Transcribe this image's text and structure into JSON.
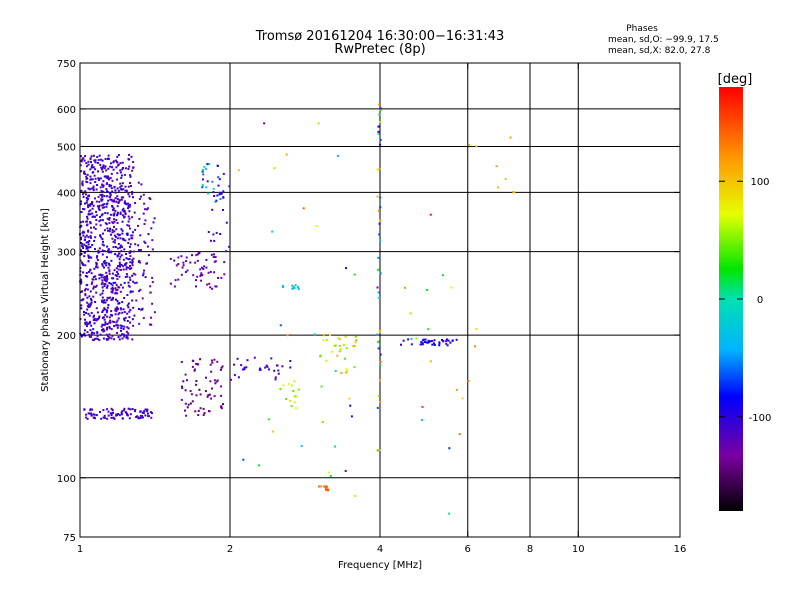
{
  "chart_data": {
    "type": "scatter",
    "title": "Tromsø 20161204 16:30:00−16:31:43",
    "subtitle": "RwPretec (8p)",
    "xlabel": "Frequency [MHz]",
    "ylabel": "Stationary phase Virtual Height [km]",
    "x_scale": "log",
    "y_scale": "log",
    "xlim": [
      1,
      16
    ],
    "ylim": [
      75,
      750
    ],
    "x_ticks": [
      1,
      2,
      4,
      6,
      8,
      10,
      16
    ],
    "x_tick_labels": [
      "1",
      "2",
      "4",
      "6",
      "8",
      "10",
      "16"
    ],
    "y_ticks": [
      75,
      100,
      200,
      300,
      400,
      500,
      600,
      750
    ],
    "y_tick_labels": [
      "75",
      "100",
      "200",
      "300",
      "400",
      "500",
      "600",
      "750"
    ],
    "x_grid": [
      2,
      4,
      6,
      8,
      10
    ],
    "y_grid": [
      100,
      200,
      300,
      400,
      500,
      600
    ],
    "grid": true,
    "phase_info": {
      "heading": "Phases",
      "line_o": "mean, sd,O: −99.9, 17.5",
      "line_x": "mean, sd,X:  82.0, 27.8"
    },
    "colorbar": {
      "label": "[deg]",
      "range": [
        -180,
        180
      ],
      "ticks": [
        100,
        0,
        -100
      ],
      "tick_labels": [
        "100",
        "0",
        "-100"
      ]
    },
    "clusters": [
      {
        "f": [
          1.0,
          1.28
        ],
        "h": [
          195,
          480
        ],
        "n": 900,
        "phase": [
          -125,
          -95
        ],
        "seed": 11
      },
      {
        "f": [
          1.28,
          1.42
        ],
        "h": [
          210,
          420
        ],
        "n": 70,
        "phase": [
          -140,
          -100
        ],
        "seed": 12
      },
      {
        "f": [
          1.02,
          1.4
        ],
        "h": [
          133,
          140
        ],
        "n": 90,
        "phase": [
          -120,
          -100
        ],
        "seed": 13
      },
      {
        "f": [
          1.6,
          1.95
        ],
        "h": [
          135,
          180
        ],
        "n": 70,
        "phase": [
          -150,
          -120
        ],
        "seed": 14
      },
      {
        "f": [
          1.5,
          1.95
        ],
        "h": [
          250,
          300
        ],
        "n": 60,
        "phase": [
          -135,
          -110
        ],
        "seed": 15
      },
      {
        "f": [
          1.75,
          1.95
        ],
        "h": [
          380,
          460
        ],
        "n": 25,
        "phase": [
          -120,
          10
        ],
        "seed": 16
      },
      {
        "f": [
          1.8,
          2.0
        ],
        "h": [
          300,
          420
        ],
        "n": 20,
        "phase": [
          -115,
          -95
        ],
        "seed": 17
      },
      {
        "f": [
          2.0,
          2.8
        ],
        "h": [
          160,
          180
        ],
        "n": 30,
        "phase": [
          -120,
          -95
        ],
        "seed": 18
      },
      {
        "f": [
          2.5,
          2.8
        ],
        "h": [
          140,
          160
        ],
        "n": 14,
        "phase": [
          40,
          80
        ],
        "seed": 19
      },
      {
        "f": [
          2.55,
          2.75
        ],
        "h": [
          250,
          255
        ],
        "n": 10,
        "phase": [
          -40,
          -20
        ],
        "seed": 20
      },
      {
        "f": [
          3.0,
          3.6
        ],
        "h": [
          165,
          200
        ],
        "n": 30,
        "phase": [
          40,
          120
        ],
        "seed": 21
      },
      {
        "f": [
          3.95,
          4.02
        ],
        "h": [
          110,
          650
        ],
        "n": 40,
        "phase": [
          -140,
          150
        ],
        "seed": 22
      },
      {
        "f": [
          4.4,
          5.7
        ],
        "h": [
          190,
          196
        ],
        "n": 40,
        "phase": [
          -110,
          -80
        ],
        "seed": 23
      },
      {
        "f": [
          3.0,
          3.15
        ],
        "h": [
          94,
          96
        ],
        "n": 14,
        "phase": [
          120,
          150
        ],
        "seed": 24
      },
      {
        "f": [
          4.05,
          6.3
        ],
        "h": [
          80,
          400
        ],
        "n": 20,
        "phase": [
          -80,
          170
        ],
        "seed": 25
      },
      {
        "f": [
          6.0,
          7.5
        ],
        "h": [
          400,
          530
        ],
        "n": 8,
        "phase": [
          90,
          140
        ],
        "seed": 26
      },
      {
        "f": [
          2.0,
          3.6
        ],
        "h": [
          90,
          600
        ],
        "n": 30,
        "phase": [
          -140,
          150
        ],
        "seed": 27
      }
    ]
  }
}
